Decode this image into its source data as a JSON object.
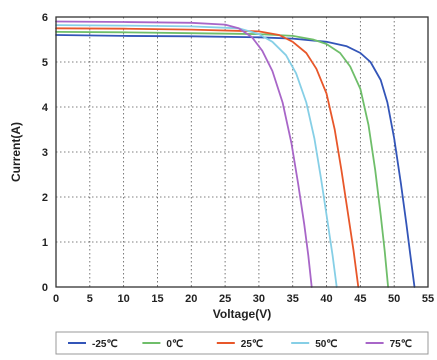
{
  "chart_data": {
    "type": "line",
    "xlabel": "Voltage(V)",
    "ylabel": "Current(A)",
    "xlim": [
      0,
      55
    ],
    "ylim": [
      0,
      6
    ],
    "x_ticks": [
      "0",
      "5",
      "10",
      "15",
      "20",
      "25",
      "30",
      "35",
      "40",
      "45",
      "50",
      "55"
    ],
    "y_ticks": [
      "0",
      "1",
      "2",
      "3",
      "4",
      "5",
      "6"
    ],
    "grid": true,
    "legend_position": "bottom",
    "series": [
      {
        "name": "-25℃",
        "color": "#3355b8",
        "points": [
          [
            0,
            5.6
          ],
          [
            10,
            5.58
          ],
          [
            20,
            5.57
          ],
          [
            30,
            5.55
          ],
          [
            35,
            5.52
          ],
          [
            40,
            5.45
          ],
          [
            43,
            5.35
          ],
          [
            45,
            5.2
          ],
          [
            46.5,
            5.0
          ],
          [
            48,
            4.6
          ],
          [
            49,
            4.1
          ],
          [
            50,
            3.3
          ],
          [
            51,
            2.3
          ],
          [
            51.8,
            1.4
          ],
          [
            52.4,
            0.7
          ],
          [
            53,
            0.0
          ]
        ]
      },
      {
        "name": "0℃",
        "color": "#6fbe6a",
        "points": [
          [
            0,
            5.67
          ],
          [
            10,
            5.66
          ],
          [
            20,
            5.64
          ],
          [
            30,
            5.62
          ],
          [
            35,
            5.58
          ],
          [
            38,
            5.5
          ],
          [
            40,
            5.4
          ],
          [
            42,
            5.2
          ],
          [
            43.5,
            4.9
          ],
          [
            45,
            4.4
          ],
          [
            46.2,
            3.6
          ],
          [
            47.2,
            2.6
          ],
          [
            48,
            1.6
          ],
          [
            48.6,
            0.8
          ],
          [
            49.1,
            0.0
          ]
        ]
      },
      {
        "name": "25℃",
        "color": "#e8572a",
        "points": [
          [
            0,
            5.75
          ],
          [
            10,
            5.74
          ],
          [
            20,
            5.72
          ],
          [
            30,
            5.68
          ],
          [
            33,
            5.6
          ],
          [
            35,
            5.45
          ],
          [
            37,
            5.2
          ],
          [
            38.5,
            4.85
          ],
          [
            40,
            4.3
          ],
          [
            41.2,
            3.5
          ],
          [
            42.2,
            2.6
          ],
          [
            43.2,
            1.6
          ],
          [
            44,
            0.8
          ],
          [
            44.7,
            0.0
          ]
        ]
      },
      {
        "name": "50℃",
        "color": "#86cfe6",
        "points": [
          [
            0,
            5.82
          ],
          [
            10,
            5.81
          ],
          [
            20,
            5.79
          ],
          [
            27,
            5.75
          ],
          [
            30,
            5.62
          ],
          [
            32,
            5.45
          ],
          [
            34,
            5.15
          ],
          [
            35.5,
            4.75
          ],
          [
            37,
            4.1
          ],
          [
            38.2,
            3.3
          ],
          [
            39.2,
            2.4
          ],
          [
            40.2,
            1.4
          ],
          [
            40.9,
            0.7
          ],
          [
            41.5,
            0.0
          ]
        ]
      },
      {
        "name": "75℃",
        "color": "#a866c8",
        "points": [
          [
            0,
            5.9
          ],
          [
            10,
            5.89
          ],
          [
            20,
            5.87
          ],
          [
            25,
            5.83
          ],
          [
            27,
            5.75
          ],
          [
            29,
            5.55
          ],
          [
            30.5,
            5.25
          ],
          [
            32,
            4.8
          ],
          [
            33.5,
            4.1
          ],
          [
            34.8,
            3.2
          ],
          [
            35.8,
            2.3
          ],
          [
            36.7,
            1.4
          ],
          [
            37.3,
            0.7
          ],
          [
            37.8,
            0.0
          ]
        ]
      }
    ]
  }
}
